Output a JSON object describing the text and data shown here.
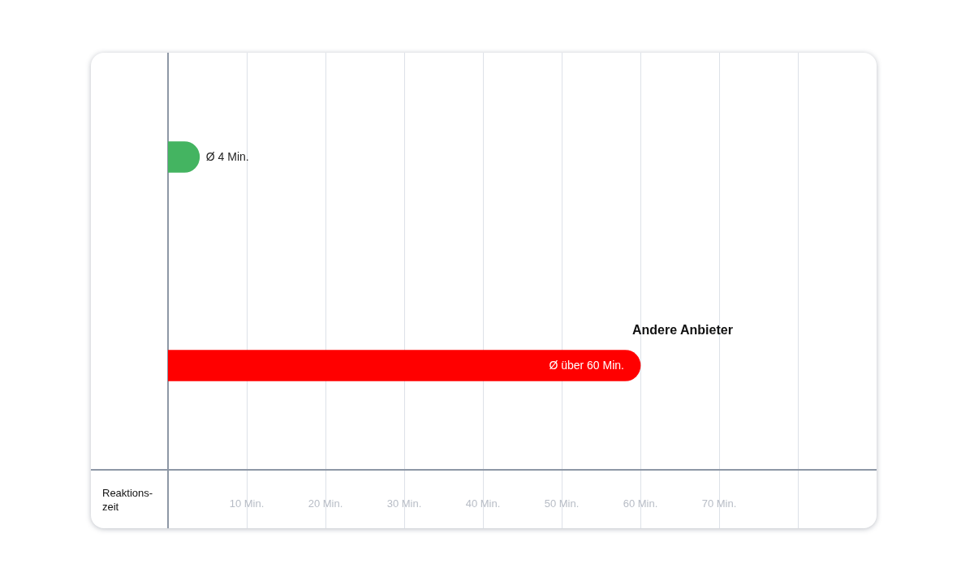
{
  "chart_data": {
    "type": "bar",
    "orientation": "horizontal",
    "categories": [
      null,
      "Andere Anbieter"
    ],
    "values": [
      4,
      60
    ],
    "colors": [
      "#44b461",
      "#ff0000"
    ],
    "value_labels": [
      "Ø 4 Min.",
      "Ø über 60 Min."
    ],
    "xlabel": "Reaktions-zeit",
    "xlim": [
      0,
      90
    ],
    "xticks": [
      {
        "value": 10,
        "label": "10 Min."
      },
      {
        "value": 20,
        "label": "20 Min."
      },
      {
        "value": 30,
        "label": "30 Min."
      },
      {
        "value": 40,
        "label": "40 Min."
      },
      {
        "value": 50,
        "label": "50 Min."
      },
      {
        "value": 60,
        "label": "60 Min."
      },
      {
        "value": 70,
        "label": "70 Min."
      },
      {
        "value": 80,
        "label": null
      }
    ],
    "grid": "x"
  }
}
